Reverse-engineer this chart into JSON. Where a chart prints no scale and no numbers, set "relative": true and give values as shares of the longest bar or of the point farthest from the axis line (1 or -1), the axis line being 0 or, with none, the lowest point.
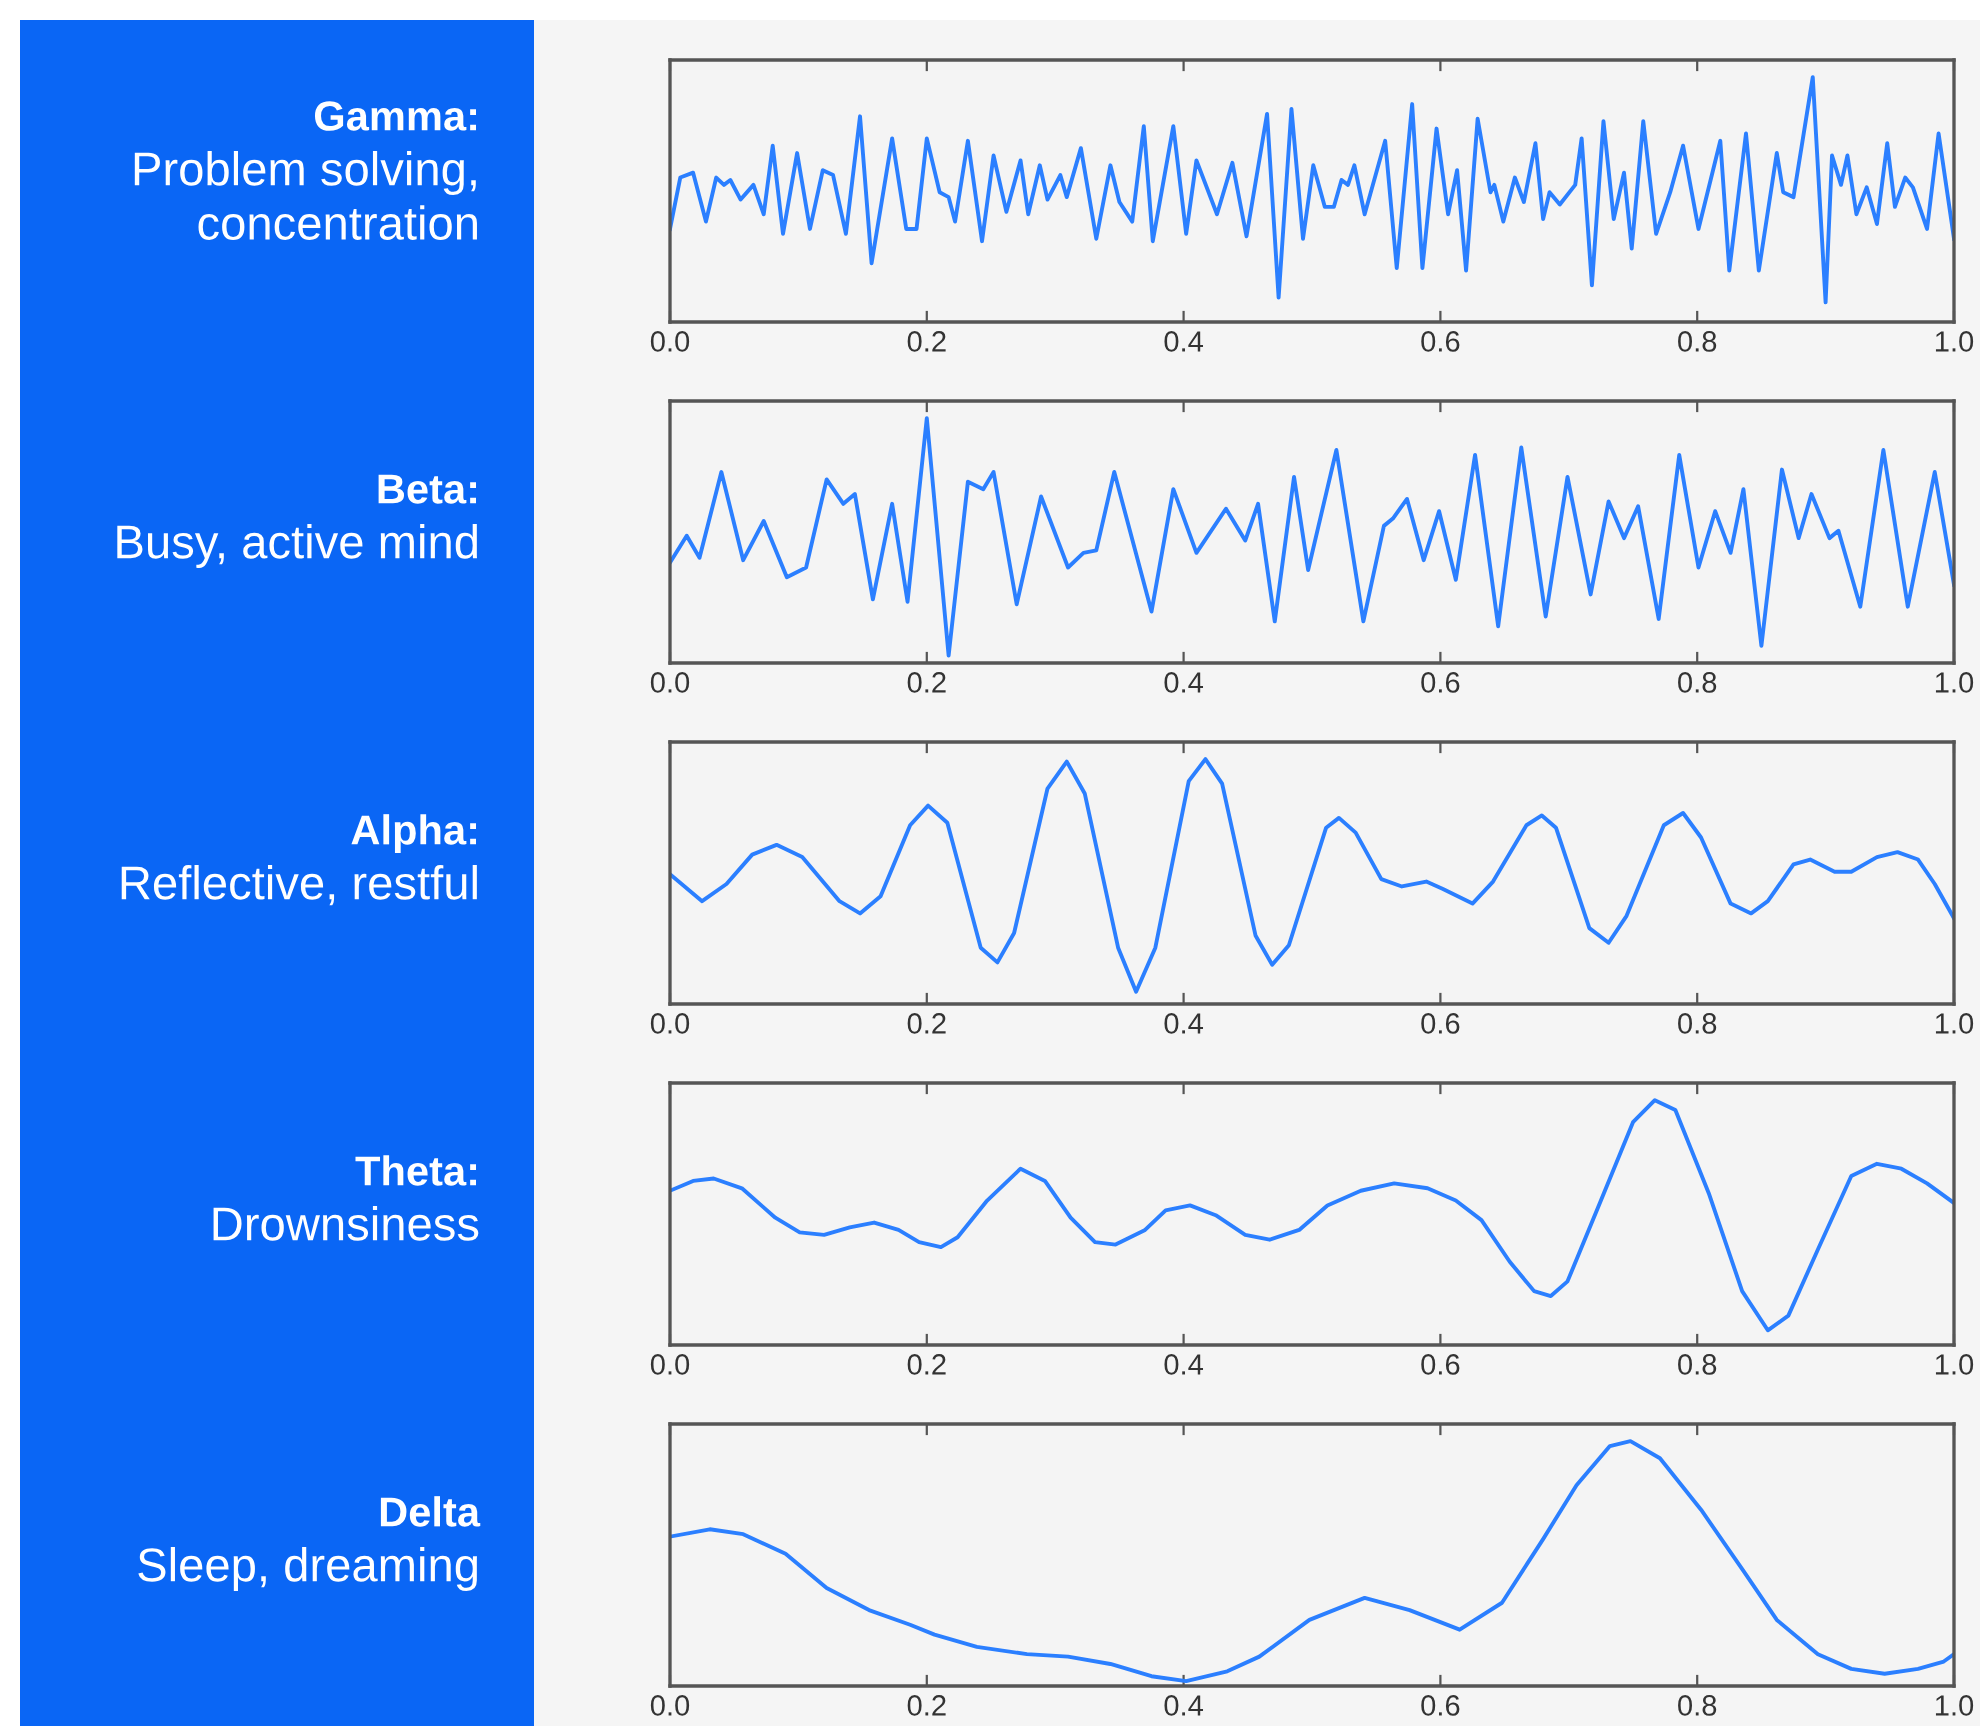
{
  "chart_data": [
    {
      "type": "line",
      "title": "Gamma:",
      "subtitle": "Problem solving,\nconcentration",
      "relative": true,
      "xlim": [
        0,
        1
      ],
      "tick_labels": "x",
      "xticks": [
        {
          "value": 0,
          "label": "0.0"
        },
        {
          "value": 0.2,
          "label": "0.2"
        },
        {
          "value": 0.4,
          "label": "0.4"
        },
        {
          "value": 0.6,
          "label": "0.6"
        },
        {
          "value": 0.8,
          "label": "0.8"
        },
        {
          "value": 1,
          "label": "1.0"
        }
      ],
      "x": [
        0.0,
        0.008,
        0.018,
        0.028,
        0.036,
        0.042,
        0.047,
        0.055,
        0.065,
        0.073,
        0.08,
        0.088,
        0.099,
        0.109,
        0.119,
        0.127,
        0.137,
        0.148,
        0.157,
        0.173,
        0.184,
        0.192,
        0.2,
        0.21,
        0.217,
        0.222,
        0.232,
        0.243,
        0.252,
        0.262,
        0.273,
        0.279,
        0.288,
        0.294,
        0.304,
        0.309,
        0.32,
        0.332,
        0.343,
        0.35,
        0.36,
        0.369,
        0.376,
        0.392,
        0.402,
        0.41,
        0.426,
        0.438,
        0.449,
        0.465,
        0.474,
        0.484,
        0.493,
        0.501,
        0.51,
        0.517,
        0.523,
        0.528,
        0.533,
        0.541,
        0.557,
        0.566,
        0.578,
        0.586,
        0.597,
        0.606,
        0.613,
        0.62,
        0.629,
        0.639,
        0.642,
        0.649,
        0.658,
        0.665,
        0.674,
        0.68,
        0.685,
        0.693,
        0.705,
        0.71,
        0.718,
        0.727,
        0.735,
        0.743,
        0.749,
        0.758,
        0.768,
        0.779,
        0.789,
        0.801,
        0.818,
        0.825,
        0.838,
        0.848,
        0.862,
        0.867,
        0.875,
        0.89,
        0.9,
        0.905,
        0.912,
        0.917,
        0.924,
        0.932,
        0.94,
        0.948,
        0.954,
        0.962,
        0.968,
        0.979,
        0.988,
        1.0
      ],
      "series": [
        {
          "color": "#2b7fff",
          "values": [
            0.38,
            0.59,
            0.61,
            0.41,
            0.59,
            0.56,
            0.58,
            0.5,
            0.56,
            0.44,
            0.72,
            0.36,
            0.69,
            0.38,
            0.62,
            0.6,
            0.36,
            0.84,
            0.24,
            0.75,
            0.38,
            0.38,
            0.75,
            0.53,
            0.51,
            0.41,
            0.74,
            0.33,
            0.68,
            0.45,
            0.66,
            0.44,
            0.64,
            0.5,
            0.6,
            0.51,
            0.71,
            0.34,
            0.64,
            0.49,
            0.41,
            0.8,
            0.33,
            0.8,
            0.36,
            0.66,
            0.44,
            0.65,
            0.35,
            0.85,
            0.1,
            0.87,
            0.34,
            0.64,
            0.47,
            0.47,
            0.58,
            0.56,
            0.64,
            0.44,
            0.74,
            0.22,
            0.89,
            0.22,
            0.79,
            0.44,
            0.62,
            0.21,
            0.83,
            0.53,
            0.56,
            0.41,
            0.59,
            0.49,
            0.73,
            0.42,
            0.53,
            0.48,
            0.56,
            0.75,
            0.15,
            0.82,
            0.42,
            0.61,
            0.3,
            0.82,
            0.36,
            0.53,
            0.72,
            0.38,
            0.74,
            0.21,
            0.77,
            0.21,
            0.69,
            0.53,
            0.51,
            1.0,
            0.08,
            0.68,
            0.56,
            0.68,
            0.44,
            0.55,
            0.4,
            0.73,
            0.47,
            0.59,
            0.55,
            0.38,
            0.77,
            0.34
          ]
        }
      ]
    },
    {
      "type": "line",
      "title": "Beta:",
      "subtitle": "Busy, active mind",
      "relative": true,
      "xlim": [
        0,
        1
      ],
      "tick_labels": "x",
      "xticks": [
        {
          "value": 0,
          "label": "0.0"
        },
        {
          "value": 0.2,
          "label": "0.2"
        },
        {
          "value": 0.4,
          "label": "0.4"
        },
        {
          "value": 0.6,
          "label": "0.6"
        },
        {
          "value": 0.8,
          "label": "0.8"
        },
        {
          "value": 1,
          "label": "1.0"
        }
      ],
      "x": [
        0.0,
        0.013,
        0.023,
        0.04,
        0.057,
        0.073,
        0.091,
        0.106,
        0.122,
        0.135,
        0.144,
        0.158,
        0.173,
        0.185,
        0.2,
        0.217,
        0.232,
        0.244,
        0.252,
        0.27,
        0.289,
        0.31,
        0.322,
        0.332,
        0.346,
        0.375,
        0.392,
        0.41,
        0.433,
        0.448,
        0.458,
        0.471,
        0.486,
        0.497,
        0.519,
        0.54,
        0.556,
        0.563,
        0.574,
        0.587,
        0.599,
        0.612,
        0.627,
        0.645,
        0.663,
        0.682,
        0.699,
        0.717,
        0.731,
        0.743,
        0.754,
        0.77,
        0.786,
        0.801,
        0.814,
        0.826,
        0.836,
        0.85,
        0.866,
        0.879,
        0.889,
        0.903,
        0.91,
        0.927,
        0.945,
        0.964,
        0.985,
        1.0
      ],
      "series": [
        {
          "color": "#2b7fff",
          "values": [
            0.41,
            0.52,
            0.43,
            0.78,
            0.42,
            0.58,
            0.35,
            0.39,
            0.75,
            0.65,
            0.69,
            0.26,
            0.65,
            0.25,
            1.0,
            0.03,
            0.74,
            0.71,
            0.78,
            0.24,
            0.68,
            0.39,
            0.45,
            0.46,
            0.78,
            0.21,
            0.71,
            0.45,
            0.63,
            0.5,
            0.65,
            0.17,
            0.76,
            0.38,
            0.87,
            0.17,
            0.56,
            0.59,
            0.67,
            0.42,
            0.62,
            0.34,
            0.85,
            0.15,
            0.88,
            0.19,
            0.76,
            0.28,
            0.66,
            0.51,
            0.64,
            0.18,
            0.85,
            0.39,
            0.62,
            0.45,
            0.71,
            0.07,
            0.79,
            0.51,
            0.69,
            0.51,
            0.54,
            0.23,
            0.87,
            0.23,
            0.78,
            0.32
          ]
        }
      ]
    },
    {
      "type": "line",
      "title": "Alpha:",
      "subtitle": "Reflective, restful",
      "relative": true,
      "xlim": [
        0,
        1
      ],
      "tick_labels": "x",
      "xticks": [
        {
          "value": 0,
          "label": "0.0"
        },
        {
          "value": 0.2,
          "label": "0.2"
        },
        {
          "value": 0.4,
          "label": "0.4"
        },
        {
          "value": 0.6,
          "label": "0.6"
        },
        {
          "value": 0.8,
          "label": "0.8"
        },
        {
          "value": 1,
          "label": "1.0"
        }
      ],
      "x": [
        0.0,
        0.025,
        0.044,
        0.064,
        0.083,
        0.103,
        0.132,
        0.148,
        0.164,
        0.187,
        0.201,
        0.216,
        0.242,
        0.255,
        0.268,
        0.294,
        0.309,
        0.323,
        0.349,
        0.363,
        0.378,
        0.404,
        0.417,
        0.43,
        0.456,
        0.469,
        0.482,
        0.511,
        0.521,
        0.534,
        0.554,
        0.57,
        0.589,
        0.602,
        0.625,
        0.641,
        0.667,
        0.679,
        0.69,
        0.716,
        0.731,
        0.745,
        0.774,
        0.789,
        0.803,
        0.826,
        0.842,
        0.855,
        0.875,
        0.888,
        0.907,
        0.92,
        0.94,
        0.956,
        0.972,
        0.985,
        1.0
      ],
      "series": [
        {
          "color": "#2b7fff",
          "values": [
            0.53,
            0.42,
            0.49,
            0.61,
            0.65,
            0.6,
            0.42,
            0.37,
            0.44,
            0.73,
            0.81,
            0.74,
            0.23,
            0.17,
            0.29,
            0.88,
            0.99,
            0.86,
            0.23,
            0.05,
            0.23,
            0.91,
            1.0,
            0.9,
            0.28,
            0.16,
            0.24,
            0.72,
            0.76,
            0.7,
            0.51,
            0.48,
            0.5,
            0.47,
            0.41,
            0.5,
            0.73,
            0.77,
            0.72,
            0.31,
            0.25,
            0.36,
            0.73,
            0.78,
            0.68,
            0.41,
            0.37,
            0.42,
            0.57,
            0.59,
            0.54,
            0.54,
            0.6,
            0.62,
            0.59,
            0.49,
            0.35
          ]
        }
      ]
    },
    {
      "type": "line",
      "title": "Theta:",
      "subtitle": "Drownsiness",
      "relative": true,
      "xlim": [
        0,
        1
      ],
      "tick_labels": "x",
      "xticks": [
        {
          "value": 0,
          "label": "0.0"
        },
        {
          "value": 0.2,
          "label": "0.2"
        },
        {
          "value": 0.4,
          "label": "0.4"
        },
        {
          "value": 0.6,
          "label": "0.6"
        },
        {
          "value": 0.8,
          "label": "0.8"
        },
        {
          "value": 1,
          "label": "1.0"
        }
      ],
      "x": [
        0.0,
        0.018,
        0.034,
        0.056,
        0.082,
        0.101,
        0.12,
        0.14,
        0.159,
        0.178,
        0.194,
        0.211,
        0.224,
        0.247,
        0.273,
        0.292,
        0.312,
        0.331,
        0.347,
        0.37,
        0.386,
        0.405,
        0.425,
        0.448,
        0.467,
        0.49,
        0.512,
        0.538,
        0.564,
        0.59,
        0.612,
        0.632,
        0.654,
        0.673,
        0.686,
        0.699,
        0.725,
        0.75,
        0.767,
        0.783,
        0.809,
        0.835,
        0.855,
        0.871,
        0.894,
        0.92,
        0.94,
        0.959,
        0.979,
        1.0
      ],
      "series": [
        {
          "color": "#2b7fff",
          "values": [
            0.63,
            0.67,
            0.68,
            0.64,
            0.52,
            0.46,
            0.45,
            0.48,
            0.5,
            0.47,
            0.42,
            0.4,
            0.44,
            0.59,
            0.72,
            0.67,
            0.52,
            0.42,
            0.41,
            0.47,
            0.55,
            0.57,
            0.53,
            0.45,
            0.43,
            0.47,
            0.57,
            0.63,
            0.66,
            0.64,
            0.59,
            0.51,
            0.34,
            0.22,
            0.2,
            0.26,
            0.59,
            0.91,
            1.0,
            0.96,
            0.62,
            0.22,
            0.06,
            0.12,
            0.39,
            0.69,
            0.74,
            0.72,
            0.66,
            0.58
          ]
        }
      ]
    },
    {
      "type": "line",
      "title": "Delta",
      "subtitle": "Sleep, dreaming",
      "relative": true,
      "xlim": [
        0,
        1
      ],
      "tick_labels": "x",
      "xticks": [
        {
          "value": 0,
          "label": "0.0"
        },
        {
          "value": 0.2,
          "label": "0.2"
        },
        {
          "value": 0.4,
          "label": "0.4"
        },
        {
          "value": 0.6,
          "label": "0.6"
        },
        {
          "value": 0.8,
          "label": "0.8"
        },
        {
          "value": 1,
          "label": "1.0"
        }
      ],
      "x": [
        0.0,
        0.031,
        0.057,
        0.09,
        0.122,
        0.155,
        0.187,
        0.206,
        0.239,
        0.278,
        0.31,
        0.343,
        0.375,
        0.402,
        0.434,
        0.459,
        0.498,
        0.541,
        0.576,
        0.615,
        0.648,
        0.68,
        0.706,
        0.732,
        0.748,
        0.771,
        0.803,
        0.836,
        0.862,
        0.894,
        0.92,
        0.946,
        0.972,
        0.992,
        1.0
      ],
      "series": [
        {
          "color": "#2b7fff",
          "values": [
            0.61,
            0.64,
            0.62,
            0.54,
            0.4,
            0.31,
            0.25,
            0.21,
            0.16,
            0.13,
            0.12,
            0.09,
            0.04,
            0.02,
            0.06,
            0.12,
            0.27,
            0.36,
            0.31,
            0.23,
            0.34,
            0.6,
            0.82,
            0.98,
            1.0,
            0.93,
            0.72,
            0.47,
            0.27,
            0.13,
            0.07,
            0.05,
            0.07,
            0.1,
            0.13
          ]
        }
      ]
    }
  ]
}
